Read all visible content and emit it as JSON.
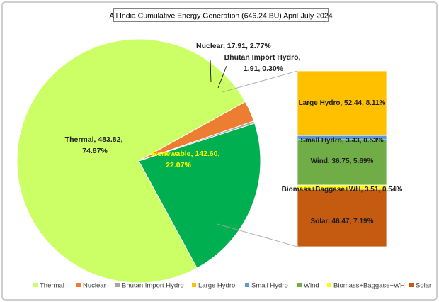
{
  "chart_data": {
    "type": "pie",
    "title": "All India Cumulative Energy Generation  (646.24 BU) April-July 2024",
    "slices": [
      {
        "name": "Thermal",
        "value": 483.82,
        "percent": 74.87,
        "label_lines": [
          "Thermal, 483.82,",
          "74.87%"
        ],
        "color": "#ccff66"
      },
      {
        "name": "Nuclear",
        "value": 17.91,
        "percent": 2.77,
        "label_lines": [
          "Nuclear, 17.91, 2.77%"
        ],
        "color": "#ed7d31"
      },
      {
        "name": "Bhutan Import Hydro",
        "value": 1.91,
        "percent": 0.3,
        "label_lines": [
          "Bhutan Import Hydro,",
          "1.91, 0.30%"
        ],
        "color": "#a5a5a5"
      },
      {
        "name": "Renewable",
        "value": 142.6,
        "percent": 22.07,
        "label_lines": [
          "Renewable, 142.60,",
          "22.07%"
        ],
        "color": "#00b050"
      }
    ],
    "breakdown": {
      "of": "Renewable",
      "segments": [
        {
          "name": "Large Hydro",
          "value": 52.44,
          "percent": 8.11,
          "label": "Large Hydro, 52.44, 8.11%",
          "color": "#ffc000"
        },
        {
          "name": "Small Hydro",
          "value": 3.43,
          "percent": 0.53,
          "label": "Small Hydro, 3.43, 0.53%",
          "color": "#5b9bd5"
        },
        {
          "name": "Wind",
          "value": 36.75,
          "percent": 5.69,
          "label": "Wind, 36.75, 5.69%",
          "color": "#70ad47"
        },
        {
          "name": "Biomass+Baggase+WH",
          "value": 3.51,
          "percent": 0.54,
          "label": "Biomass+Baggase+WH, 3.51, 0.54%",
          "color": "#ffff00"
        },
        {
          "name": "Solar",
          "value": 46.47,
          "percent": 7.19,
          "label": "Solar, 46.47, 7.19%",
          "color": "#c55a11"
        }
      ]
    },
    "legend": {
      "position": "bottom",
      "entries": [
        {
          "label": "Thermal",
          "color": "#ccff66"
        },
        {
          "label": "Nuclear",
          "color": "#ed7d31"
        },
        {
          "label": "Bhutan Import Hydro",
          "color": "#a5a5a5"
        },
        {
          "label": "Large Hydro",
          "color": "#ffc000"
        },
        {
          "label": "Small Hydro",
          "color": "#5b9bd5"
        },
        {
          "label": "Wind",
          "color": "#70ad47"
        },
        {
          "label": "Biomass+Baggase+WH",
          "color": "#ffff00"
        },
        {
          "label": "Solar",
          "color": "#c55a11"
        }
      ]
    }
  }
}
